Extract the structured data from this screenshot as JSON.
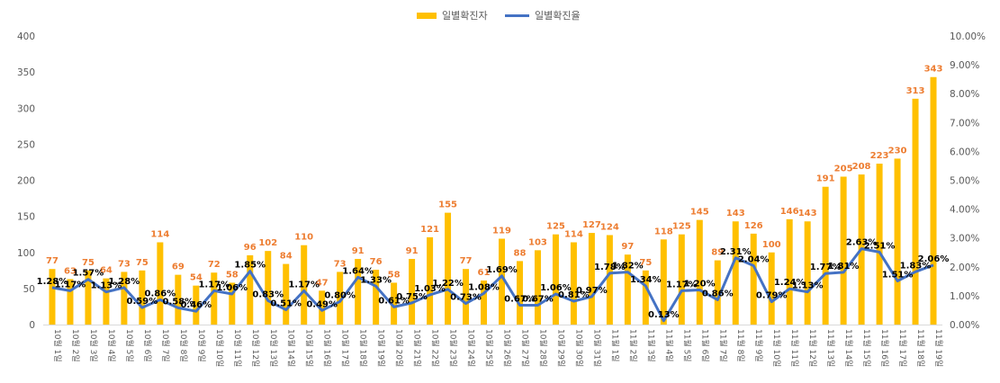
{
  "chart_data": {
    "type": "bar",
    "categories": [
      "10월 1일",
      "10월 2일",
      "10월 3일",
      "10월 4일",
      "10월 5일",
      "10월 6일",
      "10월 7일",
      "10월 8일",
      "10월 9일",
      "10월 10일",
      "10월 11일",
      "10월 12일",
      "10월 13일",
      "10월 14일",
      "10월 15일",
      "10월 16일",
      "10월 17일",
      "10월 18일",
      "10월 19일",
      "10월 20일",
      "10월 21일",
      "10월 22일",
      "10월 23일",
      "10월 24일",
      "10월 25일",
      "10월 26일",
      "10월 27일",
      "10월 28일",
      "10월 29일",
      "10월 30일",
      "10월 31일",
      "11월 1일",
      "11월 2일",
      "11월 3일",
      "11월 4일",
      "11월 5일",
      "11월 6일",
      "11월 7일",
      "11월 8일",
      "11월 9일",
      "11월 10일",
      "11월 11일",
      "11월 12일",
      "11월 13일",
      "11월 14일",
      "11월 15일",
      "11월 16일",
      "11월 17일",
      "11월 18일",
      "11월 19일"
    ],
    "series": [
      {
        "name": "일별확진자",
        "kind": "bar",
        "axis": "left",
        "color": "#FFC000",
        "label_color": "#ED7D31",
        "values": [
          77,
          63,
          75,
          64,
          73,
          75,
          114,
          69,
          54,
          72,
          58,
          96,
          102,
          84,
          110,
          47,
          73,
          91,
          76,
          58,
          91,
          121,
          155,
          77,
          61,
          119,
          88,
          103,
          125,
          114,
          127,
          124,
          97,
          75,
          118,
          125,
          145,
          89,
          143,
          126,
          100,
          146,
          143,
          191,
          205,
          208,
          223,
          230,
          313,
          343
        ]
      },
      {
        "name": "일별확진율",
        "kind": "line",
        "axis": "right",
        "color": "#4472C4",
        "values": [
          1.28,
          1.17,
          1.57,
          1.13,
          1.28,
          0.59,
          0.86,
          0.58,
          0.46,
          1.17,
          1.06,
          1.85,
          0.83,
          0.51,
          1.17,
          0.49,
          0.8,
          1.64,
          1.33,
          0.61,
          0.75,
          1.03,
          1.22,
          0.73,
          1.08,
          1.69,
          0.67,
          0.67,
          1.06,
          0.81,
          0.97,
          1.78,
          1.82,
          1.34,
          0.13,
          1.17,
          1.2,
          0.86,
          2.31,
          2.04,
          0.79,
          1.24,
          1.13,
          1.77,
          1.81,
          2.63,
          2.51,
          1.51,
          1.83,
          2.06
        ],
        "value_labels": [
          "1.28%",
          "1.17%",
          "1.57%",
          "1.13%",
          "1.28%",
          "0.59%",
          "0.86%",
          "0.58%",
          "0.46%",
          "1.17%",
          "1.06%",
          "1.85%",
          "0.83%",
          "0.51%",
          "1.17%",
          "0.49%",
          "0.80%",
          "1.64%",
          "1.33%",
          "0.61%",
          "0.75%",
          "1.03%",
          "1.22%",
          "0.73%",
          "1.08%",
          "1.69%",
          "0.67%",
          "0.67%",
          "1.06%",
          "0.81%",
          "0.97%",
          "1.78%",
          "1.82%",
          "1.34%",
          "0.13%",
          "1.17%",
          "1.20%",
          "0.86%",
          "2.31%",
          "2.04%",
          "0.79%",
          "1.24%",
          "1.13%",
          "1.77%",
          "1.81%",
          "2.63%",
          "2.51%",
          "1.51%",
          "1.83%",
          "2.06%"
        ]
      }
    ],
    "ylim": [
      0,
      400
    ],
    "y_ticks": [
      "0",
      "50",
      "100",
      "150",
      "200",
      "250",
      "300",
      "350",
      "400"
    ],
    "y2lim": [
      0,
      10
    ],
    "y2_ticks": [
      "0.00%",
      "1.00%",
      "2.00%",
      "3.00%",
      "4.00%",
      "5.00%",
      "6.00%",
      "7.00%",
      "8.00%",
      "9.00%",
      "10.00%"
    ],
    "legend": "top-center",
    "grid": false
  }
}
